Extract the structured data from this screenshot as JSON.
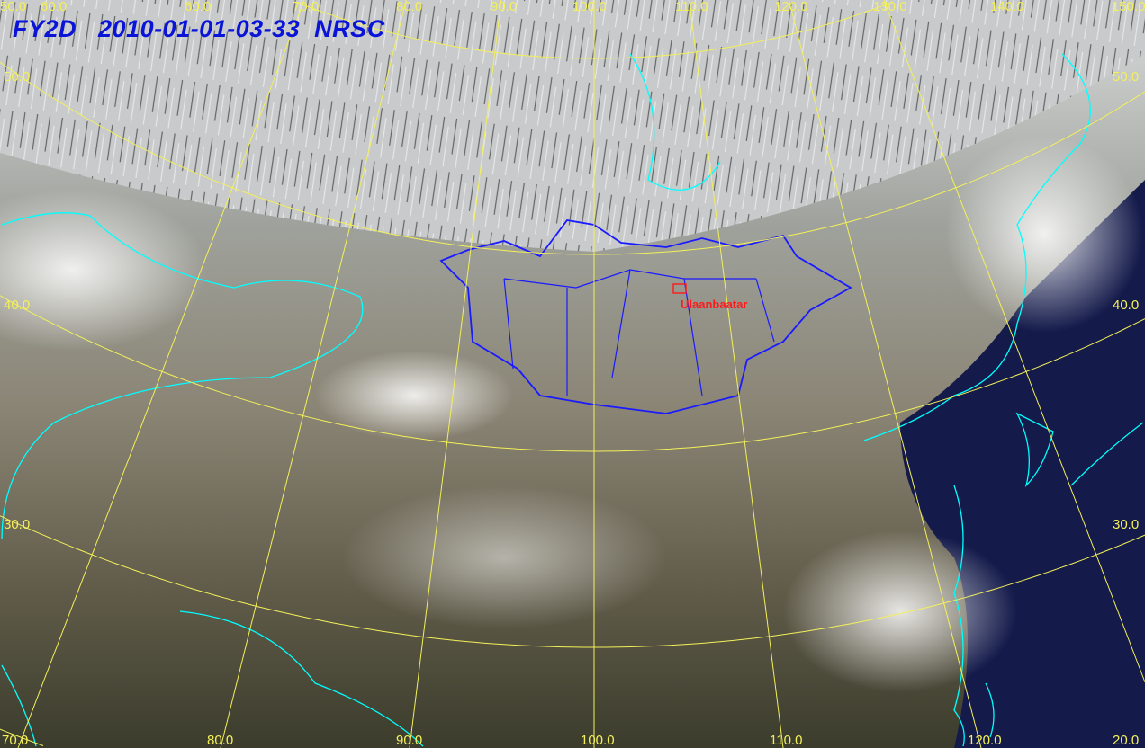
{
  "title": "FY2D   2010-01-01-03-33  NRSC",
  "city_label": "Ulaanbaatar",
  "top_labels": [
    "50.0",
    "60.0",
    "60.0",
    "70.0",
    "80.0",
    "90.0",
    "100.0",
    "110.0",
    "120.0",
    "130.0",
    "140.0",
    "150.0"
  ],
  "bottom_labels": [
    "70.0",
    "80.0",
    "90.0",
    "100.0",
    "110.0",
    "120.0"
  ],
  "left_labels": [
    "50.0",
    "40.0",
    "30.0"
  ],
  "right_labels": [
    "50.0",
    "40.0",
    "30.0",
    "20.0"
  ],
  "colors": {
    "title": "#0a14d8",
    "graticule": "#f3f05a",
    "coastline": "#00ffff",
    "mongolia_border": "#1a1aff",
    "city": "#ff1a1a",
    "sea": "#141a4a"
  }
}
